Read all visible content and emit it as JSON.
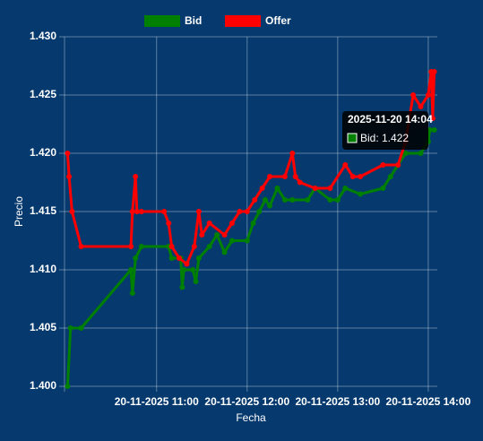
{
  "chart_data": {
    "type": "line",
    "x_label": "Fecha",
    "y_label": "Precio",
    "series": [
      {
        "name": "Bid",
        "color": "#008000",
        "x": [
          "2025-11-20 10:01",
          "2025-11-20 10:03",
          "2025-11-20 10:10",
          "2025-11-20 10:43",
          "2025-11-20 10:44",
          "2025-11-20 10:46",
          "2025-11-20 10:50",
          "2025-11-20 11:08",
          "2025-11-20 11:10",
          "2025-11-20 11:16",
          "2025-11-20 11:17",
          "2025-11-20 11:18",
          "2025-11-20 11:24",
          "2025-11-20 11:26",
          "2025-11-20 11:28",
          "2025-11-20 11:35",
          "2025-11-20 11:40",
          "2025-11-20 11:45",
          "2025-11-20 11:50",
          "2025-11-20 12:00",
          "2025-11-20 12:04",
          "2025-11-20 12:08",
          "2025-11-20 12:12",
          "2025-11-20 12:15",
          "2025-11-20 12:20",
          "2025-11-20 12:25",
          "2025-11-20 12:30",
          "2025-11-20 12:40",
          "2025-11-20 12:45",
          "2025-11-20 12:55",
          "2025-11-20 13:00",
          "2025-11-20 13:05",
          "2025-11-20 13:15",
          "2025-11-20 13:30",
          "2025-11-20 13:35",
          "2025-11-20 13:40",
          "2025-11-20 13:45",
          "2025-11-20 13:55",
          "2025-11-20 14:00",
          "2025-11-20 14:01",
          "2025-11-20 14:04"
        ],
        "values": [
          1.4,
          1.405,
          1.405,
          1.41,
          1.408,
          1.411,
          1.412,
          1.412,
          1.411,
          1.411,
          1.4085,
          1.41,
          1.41,
          1.409,
          1.411,
          1.412,
          1.413,
          1.4115,
          1.4125,
          1.4125,
          1.414,
          1.415,
          1.416,
          1.4155,
          1.417,
          1.416,
          1.416,
          1.416,
          1.417,
          1.416,
          1.416,
          1.417,
          1.4165,
          1.417,
          1.418,
          1.419,
          1.42,
          1.42,
          1.421,
          1.422,
          1.422
        ]
      },
      {
        "name": "Offer",
        "color": "#ff0000",
        "x": [
          "2025-11-20 10:01",
          "2025-11-20 10:02",
          "2025-11-20 10:04",
          "2025-11-20 10:10",
          "2025-11-20 10:43",
          "2025-11-20 10:44",
          "2025-11-20 10:46",
          "2025-11-20 10:47",
          "2025-11-20 10:50",
          "2025-11-20 11:05",
          "2025-11-20 11:08",
          "2025-11-20 11:10",
          "2025-11-20 11:15",
          "2025-11-20 11:20",
          "2025-11-20 11:25",
          "2025-11-20 11:28",
          "2025-11-20 11:30",
          "2025-11-20 11:35",
          "2025-11-20 11:45",
          "2025-11-20 11:50",
          "2025-11-20 11:55",
          "2025-11-20 12:00",
          "2025-11-20 12:05",
          "2025-11-20 12:10",
          "2025-11-20 12:15",
          "2025-11-20 12:25",
          "2025-11-20 12:30",
          "2025-11-20 12:32",
          "2025-11-20 12:35",
          "2025-11-20 12:45",
          "2025-11-20 12:55",
          "2025-11-20 13:05",
          "2025-11-20 13:10",
          "2025-11-20 13:15",
          "2025-11-20 13:30",
          "2025-11-20 13:40",
          "2025-11-20 13:45",
          "2025-11-20 13:50",
          "2025-11-20 13:55",
          "2025-11-20 14:00",
          "2025-11-20 14:02",
          "2025-11-20 14:03",
          "2025-11-20 14:04"
        ],
        "values": [
          1.42,
          1.418,
          1.415,
          1.412,
          1.412,
          1.415,
          1.418,
          1.415,
          1.415,
          1.415,
          1.414,
          1.412,
          1.411,
          1.4105,
          1.412,
          1.415,
          1.413,
          1.414,
          1.413,
          1.414,
          1.415,
          1.415,
          1.416,
          1.417,
          1.418,
          1.418,
          1.42,
          1.418,
          1.4175,
          1.417,
          1.417,
          1.419,
          1.418,
          1.418,
          1.419,
          1.419,
          1.421,
          1.425,
          1.424,
          1.425,
          1.427,
          1.423,
          1.427
        ]
      }
    ],
    "xlim": [
      "2025-11-20 09:59",
      "2025-11-20 14:06"
    ],
    "xticks": [
      {
        "value": "2025-11-20 11:00",
        "label": "20-11-2025 11:00"
      },
      {
        "value": "2025-11-20 12:00",
        "label": "20-11-2025 12:00"
      },
      {
        "value": "2025-11-20 13:00",
        "label": "20-11-2025 13:00"
      },
      {
        "value": "2025-11-20 14:00",
        "label": "20-11-2025 14:00"
      }
    ],
    "ylim": [
      1.4,
      1.43
    ],
    "yticks": [
      {
        "value": 1.4,
        "label": "1.400"
      },
      1.405,
      {
        "value": 1.41,
        "label": "1.410"
      },
      1.415,
      {
        "value": 1.42,
        "label": "1.420"
      },
      1.425,
      {
        "value": 1.43,
        "label": "1.430"
      }
    ],
    "grid": true,
    "legend": "top",
    "tooltip": {
      "title": "2025-11-20 14:04",
      "label": "Bid: 1.422"
    }
  }
}
